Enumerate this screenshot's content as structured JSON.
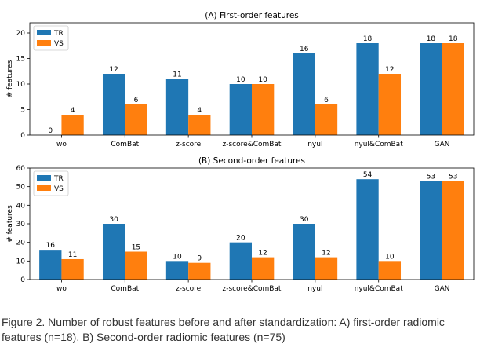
{
  "colors": {
    "TR": "#1f77b4",
    "VS": "#ff7f0e"
  },
  "chart_data": [
    {
      "type": "bar",
      "title": "(A) First-order features",
      "ylabel": "# features",
      "categories": [
        "wo",
        "ComBat",
        "z-score",
        "z-score&ComBat",
        "nyul",
        "nyul&ComBat",
        "GAN"
      ],
      "series": [
        {
          "name": "TR",
          "values": [
            0,
            12,
            11,
            10,
            16,
            18,
            18
          ]
        },
        {
          "name": "VS",
          "values": [
            4,
            6,
            4,
            10,
            6,
            12,
            18
          ]
        }
      ],
      "ylim": [
        0,
        22
      ],
      "yticks": [
        0,
        5,
        10,
        15,
        20
      ],
      "legend": "top-left",
      "grid": false
    },
    {
      "type": "bar",
      "title": "(B) Second-order features",
      "ylabel": "# features",
      "categories": [
        "wo",
        "ComBat",
        "z-score",
        "z-score&ComBat",
        "nyul",
        "nyul&ComBat",
        "GAN"
      ],
      "series": [
        {
          "name": "TR",
          "values": [
            16,
            30,
            10,
            20,
            30,
            54,
            53
          ]
        },
        {
          "name": "VS",
          "values": [
            11,
            15,
            9,
            12,
            12,
            10,
            53
          ]
        }
      ],
      "ylim": [
        0,
        60
      ],
      "yticks": [
        0,
        10,
        20,
        30,
        40,
        50,
        60
      ],
      "legend": "top-left",
      "grid": false
    }
  ],
  "caption": "Figure 2. Number of robust features before and after standardization: A) first-order radiomic features (n=18), B) Second-order radiomic features (n=75)"
}
